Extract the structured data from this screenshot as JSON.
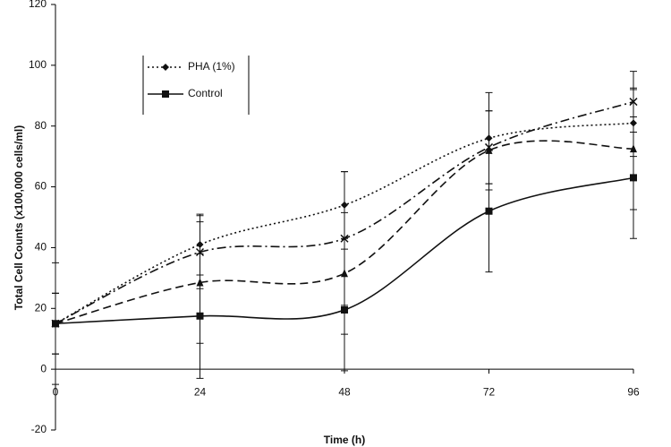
{
  "chart_data": {
    "type": "line",
    "x_label": "Time (h)",
    "y_label": "Total Cell Counts (x100,000 cells/ml)",
    "x": [
      0,
      24,
      48,
      72,
      96
    ],
    "xlim": [
      0,
      96
    ],
    "xticks": [
      0,
      24,
      48,
      72,
      96
    ],
    "ylim": [
      -20,
      120
    ],
    "yticks": [
      -20,
      0,
      20,
      40,
      60,
      80,
      100,
      120
    ],
    "series": [
      {
        "name": "PHA (1%)",
        "color": "#111111",
        "dash": "2,3",
        "marker": "diamond",
        "values": [
          15,
          41,
          54,
          76,
          81
        ],
        "errors": [
          10,
          10,
          11,
          15,
          11
        ]
      },
      {
        "name": "Control",
        "color": "#111111",
        "dash": "",
        "marker": "square",
        "values": [
          15,
          17.5,
          19.5,
          52,
          63
        ],
        "errors": [
          20,
          20.5,
          20,
          20,
          20
        ]
      },
      {
        "color": "#111111",
        "dash": "9,5",
        "marker": "triangle",
        "values": [
          15,
          28.5,
          31.5,
          72,
          72.5
        ],
        "errors": [
          10,
          20,
          20,
          13,
          20
        ]
      },
      {
        "color": "#111111",
        "dash": "10,4,2,4",
        "marker": "cross",
        "values": [
          15,
          38.5,
          43,
          73,
          88
        ],
        "errors": [
          10,
          12,
          22,
          12,
          10
        ]
      }
    ]
  }
}
